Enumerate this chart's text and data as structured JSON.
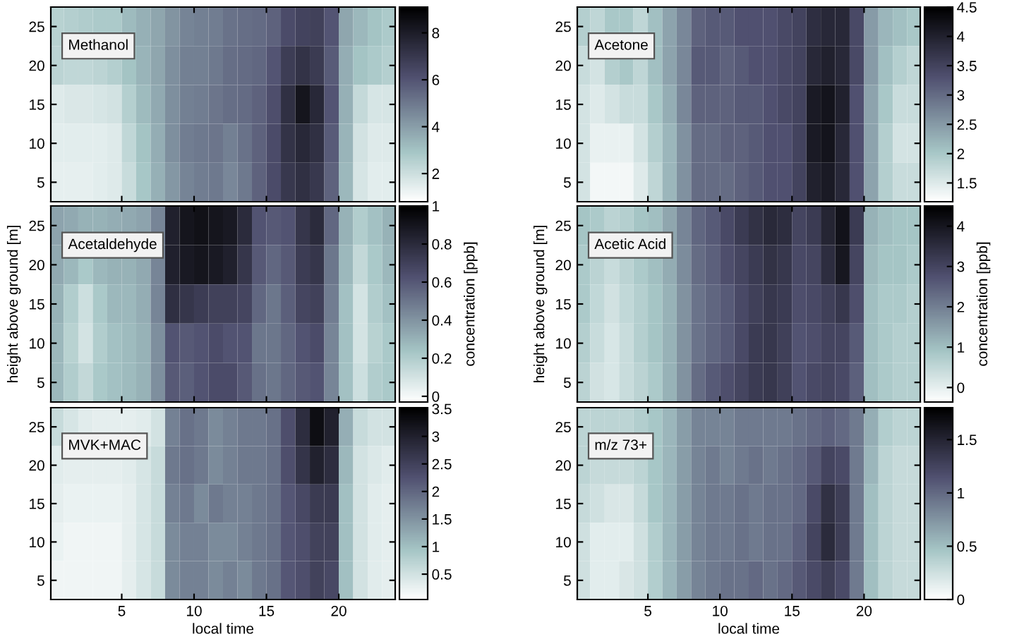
{
  "chart_data": [
    {
      "type": "heatmap",
      "title": "Methanol",
      "x": [
        0.5,
        1.5,
        2.5,
        3.5,
        4.5,
        5.5,
        6.5,
        7.5,
        8.5,
        9.5,
        10.5,
        11.5,
        12.5,
        13.5,
        14.5,
        15.5,
        16.5,
        17.5,
        18.5,
        19.5,
        20.5,
        21.5,
        22.5,
        23.5
      ],
      "y_categories": [
        "25",
        "20",
        "15",
        "10",
        "5"
      ],
      "cells": [
        [
          2.5,
          2.6,
          2.7,
          2.8,
          2.8,
          3.2,
          3.5,
          3.8,
          4.3,
          4.7,
          4.8,
          4.9,
          5.2,
          5.3,
          5.4,
          5.6,
          6.3,
          6.6,
          6.7,
          6.0,
          3.8,
          3.3,
          3.0,
          2.8
        ],
        [
          2.4,
          2.3,
          2.3,
          2.4,
          2.6,
          3.0,
          3.4,
          3.8,
          4.4,
          4.8,
          4.8,
          5.0,
          5.3,
          5.4,
          5.5,
          6.0,
          6.8,
          7.2,
          6.9,
          5.8,
          3.6,
          3.0,
          2.8,
          2.6
        ],
        [
          1.6,
          1.7,
          1.7,
          1.8,
          1.9,
          2.6,
          3.2,
          3.7,
          4.4,
          4.8,
          4.9,
          5.1,
          5.3,
          5.4,
          5.6,
          6.2,
          7.3,
          8.3,
          7.6,
          6.0,
          3.5,
          2.2,
          1.8,
          1.8
        ],
        [
          1.5,
          1.5,
          1.5,
          1.5,
          1.6,
          2.3,
          3.0,
          3.6,
          4.4,
          4.9,
          5.0,
          5.1,
          4.8,
          5.2,
          5.6,
          6.3,
          7.2,
          7.6,
          7.3,
          5.8,
          3.4,
          1.9,
          1.6,
          1.6
        ],
        [
          1.4,
          1.4,
          1.4,
          1.5,
          1.6,
          2.1,
          2.9,
          3.5,
          4.2,
          4.7,
          4.9,
          5.0,
          4.6,
          5.0,
          5.6,
          6.3,
          7.0,
          7.3,
          7.0,
          5.6,
          3.3,
          1.8,
          1.5,
          1.5
        ]
      ],
      "clim": [
        0.8,
        9.1
      ],
      "cticks": [
        2,
        4,
        6,
        8
      ],
      "xlim": [
        0.1,
        23.9
      ],
      "xticks": [
        5,
        10,
        15,
        20
      ],
      "tick_labels": "y"
    },
    {
      "type": "heatmap",
      "title": "Acetone",
      "x": [
        0.5,
        1.5,
        2.5,
        3.5,
        4.5,
        5.5,
        6.5,
        7.5,
        8.5,
        9.5,
        10.5,
        11.5,
        12.5,
        13.5,
        14.5,
        15.5,
        16.5,
        17.5,
        18.5,
        19.5,
        20.5,
        21.5,
        22.5,
        23.5
      ],
      "y_categories": [
        "25",
        "20",
        "15",
        "10",
        "5"
      ],
      "cells": [
        [
          1.9,
          1.8,
          2.0,
          2.0,
          1.8,
          2.1,
          2.4,
          2.7,
          3.1,
          3.2,
          3.2,
          3.3,
          3.3,
          3.3,
          3.4,
          3.5,
          3.8,
          3.9,
          3.9,
          3.4,
          2.5,
          2.2,
          2.1,
          2.0
        ],
        [
          1.7,
          1.6,
          1.9,
          2.0,
          1.8,
          2.1,
          2.4,
          2.7,
          3.2,
          3.2,
          3.1,
          3.2,
          3.3,
          3.3,
          3.4,
          3.5,
          3.9,
          4.0,
          3.9,
          3.4,
          2.5,
          2.1,
          1.9,
          1.8
        ],
        [
          1.6,
          1.5,
          1.6,
          1.7,
          1.7,
          2.0,
          2.3,
          2.7,
          3.1,
          3.1,
          3.1,
          3.2,
          3.2,
          3.3,
          3.4,
          3.5,
          4.1,
          4.2,
          4.0,
          3.3,
          2.4,
          2.0,
          1.7,
          1.7
        ],
        [
          1.6,
          1.4,
          1.4,
          1.4,
          1.6,
          1.9,
          2.2,
          2.6,
          3.0,
          3.0,
          3.1,
          3.1,
          3.2,
          3.3,
          3.3,
          3.5,
          4.1,
          4.2,
          3.9,
          3.3,
          2.4,
          1.9,
          1.6,
          1.6
        ],
        [
          1.6,
          1.3,
          1.3,
          1.3,
          1.5,
          1.8,
          2.2,
          2.6,
          3.0,
          3.0,
          3.0,
          3.1,
          3.2,
          3.3,
          3.3,
          3.5,
          4.0,
          4.1,
          3.9,
          3.3,
          2.4,
          1.9,
          1.7,
          1.7
        ]
      ],
      "clim": [
        1.18,
        4.5
      ],
      "cticks": [
        1.5,
        2,
        2.5,
        3,
        3.5,
        4,
        4.5
      ],
      "xlim": [
        0.1,
        23.9
      ],
      "xticks": [
        5,
        10,
        15,
        20
      ],
      "tick_labels": "y"
    },
    {
      "type": "heatmap",
      "title": "Acetaldehyde",
      "ylabel": "height above ground [m]",
      "clabel": "concentration [ppb]",
      "x": [
        0.5,
        1.5,
        2.5,
        3.5,
        4.5,
        5.5,
        6.5,
        7.5,
        8.5,
        9.5,
        10.5,
        11.5,
        12.5,
        13.5,
        14.5,
        15.5,
        16.5,
        17.5,
        18.5,
        19.5,
        20.5,
        21.5,
        22.5,
        23.5
      ],
      "y_categories": [
        "25",
        "20",
        "15",
        "10",
        "5"
      ],
      "cells": [
        [
          0.35,
          0.33,
          0.3,
          0.3,
          0.32,
          0.33,
          0.35,
          0.45,
          0.85,
          0.9,
          0.92,
          0.9,
          0.88,
          0.8,
          0.62,
          0.6,
          0.62,
          0.75,
          0.8,
          0.55,
          0.3,
          0.2,
          0.25,
          0.3
        ],
        [
          0.33,
          0.28,
          0.22,
          0.28,
          0.3,
          0.3,
          0.33,
          0.45,
          0.85,
          0.88,
          0.9,
          0.88,
          0.85,
          0.75,
          0.6,
          0.55,
          0.6,
          0.72,
          0.75,
          0.5,
          0.28,
          0.15,
          0.22,
          0.28
        ],
        [
          0.3,
          0.2,
          0.12,
          0.22,
          0.28,
          0.28,
          0.32,
          0.45,
          0.78,
          0.75,
          0.72,
          0.7,
          0.7,
          0.68,
          0.55,
          0.5,
          0.58,
          0.68,
          0.7,
          0.48,
          0.25,
          0.1,
          0.2,
          0.25
        ],
        [
          0.28,
          0.18,
          0.1,
          0.2,
          0.25,
          0.27,
          0.3,
          0.42,
          0.62,
          0.6,
          0.62,
          0.65,
          0.62,
          0.62,
          0.5,
          0.5,
          0.55,
          0.62,
          0.65,
          0.45,
          0.25,
          0.1,
          0.18,
          0.22
        ],
        [
          0.28,
          0.2,
          0.15,
          0.22,
          0.25,
          0.27,
          0.3,
          0.42,
          0.6,
          0.58,
          0.62,
          0.65,
          0.65,
          0.6,
          0.52,
          0.5,
          0.55,
          0.6,
          0.62,
          0.45,
          0.25,
          0.12,
          0.2,
          0.22
        ]
      ],
      "clim": [
        -0.03,
        1
      ],
      "cticks": [
        0,
        0.2,
        0.4,
        0.6,
        0.8,
        1
      ],
      "xlim": [
        0.1,
        23.9
      ],
      "xticks": [
        5,
        10,
        15,
        20
      ],
      "tick_labels": "y"
    },
    {
      "type": "heatmap",
      "title": "Acetic Acid",
      "ylabel": "height above ground [m]",
      "clabel": "concentration [ppb]",
      "x": [
        0.5,
        1.5,
        2.5,
        3.5,
        4.5,
        5.5,
        6.5,
        7.5,
        8.5,
        9.5,
        10.5,
        11.5,
        12.5,
        13.5,
        14.5,
        15.5,
        16.5,
        17.5,
        18.5,
        19.5,
        20.5,
        21.5,
        22.5,
        23.5
      ],
      "y_categories": [
        "25",
        "20",
        "15",
        "10",
        "5"
      ],
      "cells": [
        [
          0.9,
          0.8,
          0.6,
          0.7,
          0.9,
          1.0,
          1.4,
          1.9,
          2.4,
          2.6,
          2.9,
          3.2,
          3.4,
          3.6,
          3.5,
          3.0,
          3.2,
          3.7,
          4.1,
          3.2,
          1.2,
          1.0,
          0.9,
          0.9
        ],
        [
          0.8,
          0.6,
          0.4,
          0.6,
          0.8,
          1.0,
          1.3,
          1.8,
          2.3,
          2.5,
          2.8,
          3.0,
          3.2,
          3.4,
          3.3,
          2.9,
          3.0,
          3.5,
          4.0,
          3.0,
          1.1,
          0.9,
          0.9,
          0.8
        ],
        [
          0.8,
          0.5,
          0.3,
          0.5,
          0.7,
          0.9,
          1.2,
          1.7,
          2.2,
          2.4,
          2.6,
          2.9,
          3.1,
          3.3,
          3.2,
          2.8,
          2.9,
          3.1,
          3.3,
          2.8,
          1.0,
          0.8,
          0.8,
          0.7
        ],
        [
          0.7,
          0.4,
          0.2,
          0.4,
          0.7,
          0.9,
          1.2,
          1.7,
          2.2,
          2.4,
          2.6,
          2.9,
          3.2,
          3.3,
          3.1,
          2.7,
          2.8,
          3.0,
          3.0,
          2.6,
          1.0,
          0.8,
          0.7,
          0.7
        ],
        [
          0.6,
          0.3,
          0.2,
          0.4,
          0.6,
          0.8,
          1.2,
          1.7,
          2.3,
          2.6,
          2.8,
          3.0,
          3.2,
          3.3,
          3.1,
          2.7,
          2.9,
          3.0,
          2.9,
          2.5,
          1.0,
          0.8,
          0.7,
          0.7
        ]
      ],
      "clim": [
        -0.36,
        4.5
      ],
      "cticks": [
        0,
        1,
        2,
        3,
        4
      ],
      "xlim": [
        0.1,
        23.9
      ],
      "xticks": [
        5,
        10,
        15,
        20
      ],
      "tick_labels": "y"
    },
    {
      "type": "heatmap",
      "title": "MVK+MAC",
      "xlabel": "local time",
      "x": [
        0.5,
        1.5,
        2.5,
        3.5,
        4.5,
        5.5,
        6.5,
        7.5,
        8.5,
        9.5,
        10.5,
        11.5,
        12.5,
        13.5,
        14.5,
        15.5,
        16.5,
        17.5,
        18.5,
        19.5,
        20.5,
        21.5,
        22.5,
        23.5
      ],
      "y_categories": [
        "25",
        "20",
        "15",
        "10",
        "5"
      ],
      "cells": [
        [
          0.6,
          0.45,
          0.35,
          0.3,
          0.3,
          0.3,
          0.35,
          0.5,
          1.7,
          1.9,
          1.8,
          1.6,
          1.7,
          1.8,
          1.8,
          1.9,
          2.3,
          2.8,
          3.3,
          3.0,
          1.2,
          0.6,
          0.5,
          0.5
        ],
        [
          0.35,
          0.3,
          0.3,
          0.3,
          0.3,
          0.35,
          0.45,
          0.6,
          1.8,
          1.9,
          1.8,
          1.6,
          1.7,
          1.8,
          1.8,
          1.9,
          2.3,
          2.7,
          3.0,
          2.8,
          1.1,
          0.5,
          0.4,
          0.35
        ],
        [
          0.3,
          0.25,
          0.25,
          0.25,
          0.25,
          0.3,
          0.45,
          0.6,
          1.7,
          1.8,
          1.6,
          1.8,
          1.7,
          1.7,
          1.8,
          1.9,
          2.2,
          2.4,
          2.6,
          2.6,
          1.0,
          0.5,
          0.35,
          0.3
        ],
        [
          0.25,
          0.2,
          0.2,
          0.2,
          0.2,
          0.3,
          0.45,
          0.6,
          1.6,
          1.7,
          1.7,
          1.6,
          1.6,
          1.7,
          1.8,
          1.9,
          2.2,
          2.3,
          2.5,
          2.5,
          1.0,
          0.5,
          0.35,
          0.3
        ],
        [
          0.2,
          0.2,
          0.2,
          0.2,
          0.2,
          0.3,
          0.45,
          0.6,
          1.6,
          1.7,
          1.7,
          1.6,
          1.7,
          1.6,
          1.8,
          1.9,
          2.2,
          2.3,
          2.5,
          2.4,
          1.0,
          0.5,
          0.35,
          0.3
        ]
      ],
      "clim": [
        0.04,
        3.52
      ],
      "cticks": [
        0.5,
        1,
        1.5,
        2,
        2.5,
        3,
        3.5
      ],
      "xlim": [
        0.1,
        23.9
      ],
      "xticks": [
        5,
        10,
        15,
        20
      ]
    },
    {
      "type": "heatmap",
      "title": "m/z 73+",
      "xlabel": "local time",
      "x": [
        0.5,
        1.5,
        2.5,
        3.5,
        4.5,
        5.5,
        6.5,
        7.5,
        8.5,
        9.5,
        10.5,
        11.5,
        12.5,
        13.5,
        14.5,
        15.5,
        16.5,
        17.5,
        18.5,
        19.5,
        20.5,
        21.5,
        22.5,
        23.5
      ],
      "y_categories": [
        "25",
        "20",
        "15",
        "10",
        "5"
      ],
      "cells": [
        [
          0.35,
          0.35,
          0.35,
          0.35,
          0.4,
          0.45,
          0.55,
          0.7,
          0.85,
          0.85,
          0.85,
          0.9,
          0.9,
          0.9,
          0.9,
          0.95,
          1.0,
          1.05,
          1.0,
          0.9,
          0.6,
          0.4,
          0.35,
          0.35
        ],
        [
          0.35,
          0.3,
          0.3,
          0.3,
          0.35,
          0.45,
          0.55,
          0.7,
          0.85,
          0.9,
          0.85,
          0.9,
          0.95,
          0.9,
          0.95,
          1.0,
          1.1,
          1.25,
          1.2,
          0.9,
          0.55,
          0.35,
          0.3,
          0.3
        ],
        [
          0.3,
          0.25,
          0.2,
          0.2,
          0.3,
          0.45,
          0.55,
          0.7,
          0.85,
          0.9,
          0.9,
          0.95,
          0.9,
          0.95,
          0.95,
          1.0,
          1.2,
          1.4,
          1.3,
          0.9,
          0.5,
          0.35,
          0.3,
          0.3
        ],
        [
          0.25,
          0.15,
          0.15,
          0.15,
          0.25,
          0.4,
          0.55,
          0.7,
          0.85,
          0.9,
          0.9,
          0.95,
          0.9,
          0.95,
          0.95,
          1.05,
          1.25,
          1.45,
          1.3,
          0.9,
          0.5,
          0.35,
          0.3,
          0.3
        ],
        [
          0.25,
          0.15,
          0.15,
          0.2,
          0.25,
          0.4,
          0.55,
          0.7,
          0.85,
          0.9,
          0.95,
          0.95,
          1.0,
          0.95,
          1.0,
          1.1,
          1.2,
          1.3,
          1.2,
          0.9,
          0.5,
          0.35,
          0.3,
          0.3
        ]
      ],
      "clim": [
        0,
        1.8
      ],
      "cticks": [
        0,
        0.5,
        1,
        1.5
      ],
      "xlim": [
        0.1,
        23.9
      ],
      "xticks": [
        5,
        10,
        15,
        20
      ]
    }
  ]
}
